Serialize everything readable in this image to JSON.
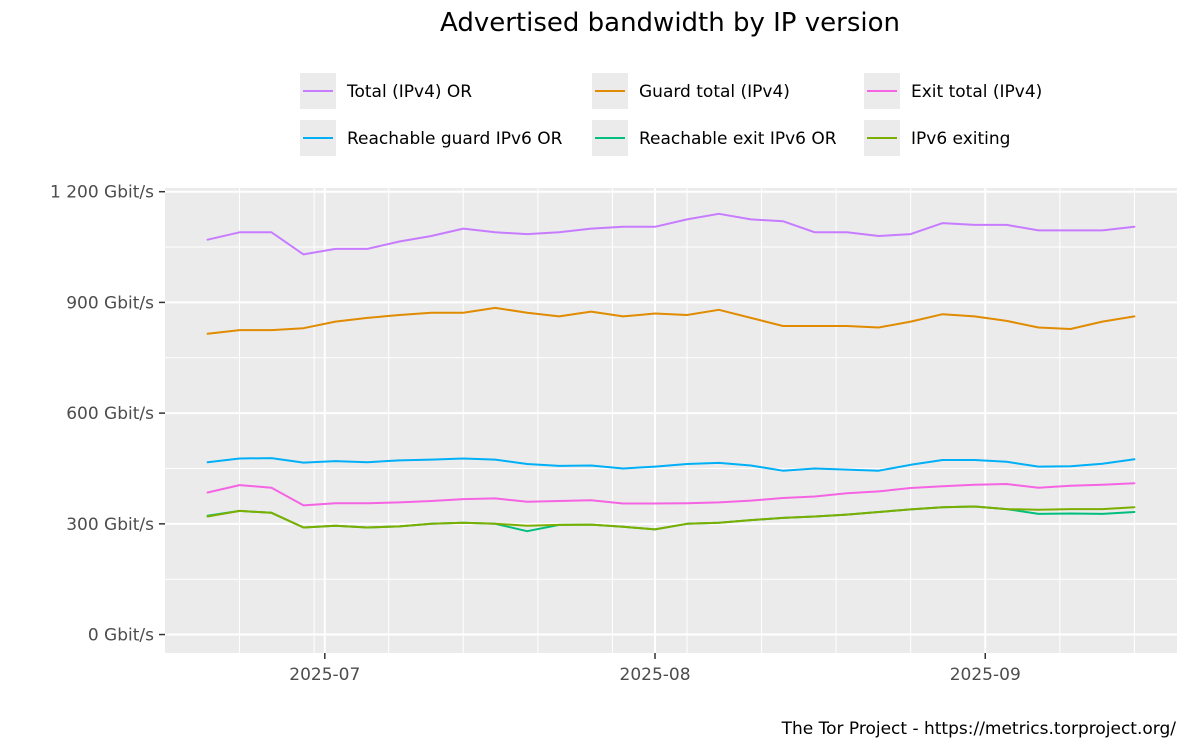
{
  "chart_data": {
    "type": "line",
    "title": "Advertised bandwidth by IP version",
    "xlabel": "",
    "ylabel": "",
    "caption": "The Tor Project - https://metrics.torproject.org/",
    "x_range": [
      "2025-06-16",
      "2025-09-19"
    ],
    "ylim": [
      -50,
      1210
    ],
    "y_ticks": [
      {
        "value": 0,
        "label": "0 Gbit/s"
      },
      {
        "value": 300,
        "label": "300 Gbit/s"
      },
      {
        "value": 600,
        "label": "600 Gbit/s"
      },
      {
        "value": 900,
        "label": "900 Gbit/s"
      },
      {
        "value": 1200,
        "label": "1 200 Gbit/s"
      }
    ],
    "x_ticks": [
      {
        "value": "2025-07-01",
        "label": "2025-07"
      },
      {
        "value": "2025-08-01",
        "label": "2025-08"
      },
      {
        "value": "2025-09-01",
        "label": "2025-09"
      }
    ],
    "grid": true,
    "legend_position": "top",
    "legend_layout": "3 columns, 2 rows",
    "x": [
      "2025-06-20",
      "2025-06-23",
      "2025-06-26",
      "2025-06-29",
      "2025-07-02",
      "2025-07-05",
      "2025-07-08",
      "2025-07-11",
      "2025-07-14",
      "2025-07-17",
      "2025-07-20",
      "2025-07-23",
      "2025-07-26",
      "2025-07-29",
      "2025-08-01",
      "2025-08-04",
      "2025-08-07",
      "2025-08-10",
      "2025-08-13",
      "2025-08-16",
      "2025-08-19",
      "2025-08-22",
      "2025-08-25",
      "2025-08-28",
      "2025-08-31",
      "2025-09-03",
      "2025-09-06",
      "2025-09-09",
      "2025-09-12",
      "2025-09-15"
    ],
    "series": [
      {
        "name": "Total (IPv4) OR",
        "color": "#C77CFF",
        "values": [
          1070,
          1090,
          1090,
          1030,
          1045,
          1045,
          1065,
          1080,
          1100,
          1090,
          1085,
          1090,
          1100,
          1105,
          1105,
          1125,
          1140,
          1125,
          1120,
          1090,
          1090,
          1080,
          1085,
          1115,
          1110,
          1110,
          1095,
          1095,
          1095,
          1105
        ]
      },
      {
        "name": "Guard total (IPv4)",
        "color": "#E08B00",
        "values": [
          815,
          825,
          825,
          830,
          848,
          858,
          866,
          872,
          872,
          885,
          872,
          862,
          875,
          862,
          870,
          866,
          880,
          858,
          836,
          836,
          836,
          832,
          848,
          868,
          862,
          850,
          832,
          828,
          848,
          862
        ]
      },
      {
        "name": "Exit total (IPv4)",
        "color": "#F564E3",
        "values": [
          385,
          405,
          398,
          350,
          356,
          356,
          358,
          362,
          367,
          369,
          360,
          362,
          364,
          355,
          355,
          356,
          358,
          363,
          370,
          374,
          383,
          388,
          397,
          402,
          406,
          408,
          398,
          403,
          406,
          410
        ]
      },
      {
        "name": "Reachable guard IPv6 OR",
        "color": "#00B0F6",
        "values": [
          467,
          477,
          478,
          466,
          470,
          467,
          472,
          474,
          477,
          474,
          462,
          457,
          458,
          450,
          455,
          462,
          465,
          458,
          444,
          450,
          447,
          444,
          460,
          473,
          473,
          468,
          455,
          456,
          463,
          475
        ]
      },
      {
        "name": "Reachable exit IPv6 OR",
        "color": "#00BF7D",
        "values": [
          322,
          335,
          330,
          290,
          295,
          290,
          293,
          300,
          303,
          300,
          280,
          297,
          298,
          292,
          285,
          300,
          303,
          310,
          316,
          320,
          325,
          332,
          339,
          345,
          347,
          340,
          327,
          328,
          327,
          332
        ]
      },
      {
        "name": "IPv6 exiting",
        "color": "#7CAE00",
        "values": [
          320,
          335,
          330,
          290,
          295,
          290,
          293,
          300,
          303,
          300,
          295,
          297,
          298,
          292,
          285,
          300,
          303,
          310,
          316,
          320,
          325,
          332,
          339,
          345,
          347,
          340,
          338,
          340,
          340,
          345
        ]
      }
    ]
  }
}
